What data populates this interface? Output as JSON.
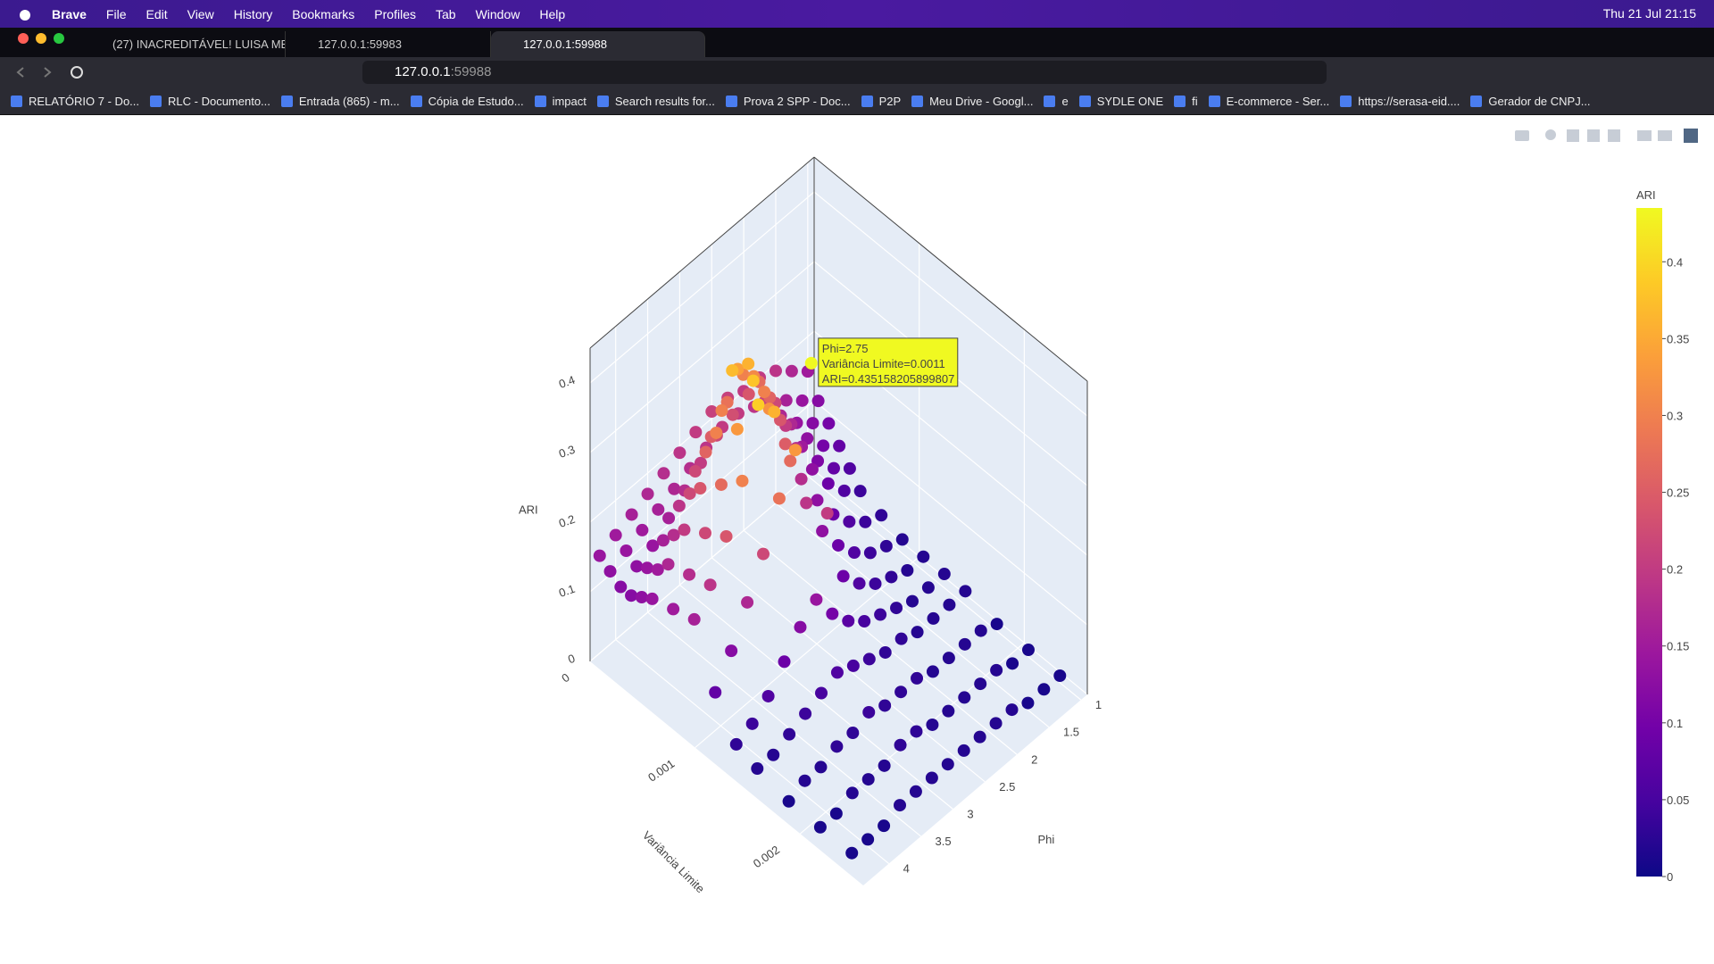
{
  "menu_bar": {
    "app": "Brave",
    "items": [
      "File",
      "Edit",
      "View",
      "History",
      "Bookmarks",
      "Profiles",
      "Tab",
      "Window",
      "Help"
    ],
    "clock": "Thu 21 Jul  21:15"
  },
  "tabs": [
    {
      "title": "(27) INACREDITÁVEL! LUISA MEL IN",
      "active": false
    },
    {
      "title": "127.0.0.1:59983",
      "active": false
    },
    {
      "title": "127.0.0.1:59988",
      "active": true
    }
  ],
  "address": {
    "host": "127.0.0.1",
    "port": ":59988"
  },
  "bookmarks": [
    "RELATÓRIO 7 - Do...",
    "RLC - Documento...",
    "Entrada (865) - m...",
    "Cópia de Estudo...",
    "impact",
    "Search results for...",
    "Prova 2 SPP - Doc...",
    "P2P",
    "Meu Drive - Googl...",
    "e",
    "SYDLE ONE",
    "fi",
    "E-commerce - Ser...",
    "https://serasa-eid....",
    "Gerador de CNPJ..."
  ],
  "chart_data": {
    "type": "scatter3d",
    "x_label": "Phi",
    "y_label": "Variância Limite",
    "z_label": "ARI",
    "colorbar_title": "ARI",
    "x": [
      1,
      1.25,
      1.5,
      1.75,
      2,
      2.25,
      2.5,
      2.75,
      3,
      3.25,
      3.5,
      3.75,
      4,
      4.25
    ],
    "y": [
      0,
      0.0001,
      0.0002,
      0.0003,
      0.0004,
      0.0005,
      0.0007,
      0.0009,
      0.0011,
      0.0013,
      0.0015,
      0.0018,
      0.0021,
      0.0024
    ],
    "z": [
      [
        0.15,
        0.17,
        0.19,
        0.2,
        0.2,
        0.21,
        0.21,
        0.2,
        0.19,
        0.18,
        0.17,
        0.16,
        0.15,
        0.14
      ],
      [
        0.12,
        0.14,
        0.16,
        0.18,
        0.19,
        0.2,
        0.2,
        0.19,
        0.18,
        0.17,
        0.16,
        0.15,
        0.14,
        0.13
      ],
      [
        0.1,
        0.12,
        0.14,
        0.17,
        0.21,
        0.24,
        0.23,
        0.22,
        0.2,
        0.18,
        0.16,
        0.14,
        0.13,
        0.12
      ],
      [
        0.08,
        0.1,
        0.13,
        0.17,
        0.22,
        0.27,
        0.3,
        0.28,
        0.25,
        0.22,
        0.19,
        0.16,
        0.14,
        0.12
      ],
      [
        0.06,
        0.08,
        0.11,
        0.15,
        0.2,
        0.26,
        0.31,
        0.34,
        0.3,
        0.26,
        0.22,
        0.18,
        0.15,
        0.13
      ],
      [
        0.04,
        0.06,
        0.09,
        0.13,
        0.18,
        0.24,
        0.3,
        0.36,
        0.37,
        0.3,
        0.24,
        0.2,
        0.17,
        0.14
      ],
      [
        0.03,
        0.04,
        0.06,
        0.09,
        0.13,
        0.18,
        0.25,
        0.32,
        0.38,
        0.33,
        0.27,
        0.22,
        0.18,
        0.15
      ],
      [
        0.02,
        0.03,
        0.04,
        0.06,
        0.09,
        0.13,
        0.19,
        0.27,
        0.36,
        0.39,
        0.3,
        0.24,
        0.19,
        0.16
      ],
      [
        0.02,
        0.02,
        0.03,
        0.04,
        0.06,
        0.09,
        0.2,
        0.435158205899807,
        0.33,
        0.28,
        0.22,
        0.17,
        0.12,
        0.08
      ],
      [
        0.02,
        0.02,
        0.02,
        0.03,
        0.04,
        0.05,
        0.07,
        0.1,
        0.14,
        0.12,
        0.09,
        0.06,
        0.04,
        0.03
      ],
      [
        0.02,
        0.02,
        0.02,
        0.02,
        0.03,
        0.03,
        0.04,
        0.05,
        0.06,
        0.05,
        0.04,
        0.03,
        0.02,
        0.02
      ],
      [
        0.01,
        0.02,
        0.02,
        0.02,
        0.02,
        0.03,
        0.03,
        0.03,
        0.04,
        0.03,
        0.03,
        0.02,
        0.02,
        0.01
      ],
      [
        0.01,
        0.01,
        0.02,
        0.02,
        0.02,
        0.02,
        0.02,
        0.03,
        0.03,
        0.02,
        0.02,
        0.02,
        0.01,
        0.01
      ],
      [
        0.01,
        0.01,
        0.01,
        0.02,
        0.02,
        0.02,
        0.02,
        0.02,
        0.02,
        0.02,
        0.02,
        0.01,
        0.01,
        0.01
      ]
    ],
    "xlim": [
      0.9,
      4.4
    ],
    "ylim": [
      0,
      0.0026
    ],
    "zlim": [
      0,
      0.45
    ],
    "xticks": [
      1,
      1.5,
      2,
      2.5,
      3,
      3.5,
      4
    ],
    "yticks": [
      0,
      0.001,
      0.002
    ],
    "zticks": [
      0,
      0.1,
      0.2,
      0.3,
      0.4
    ],
    "clim": [
      0,
      0.435
    ],
    "cticks": [
      0,
      0.05,
      0.1,
      0.15,
      0.2,
      0.25,
      0.3,
      0.35,
      0.4
    ],
    "colorscale": [
      "#0d0887",
      "#46039f",
      "#7201a8",
      "#9c179e",
      "#bd3786",
      "#d8576b",
      "#ed7953",
      "#fb9f3a",
      "#fdca26",
      "#f0f921"
    ],
    "hover": {
      "x": 2.75,
      "y": 0.0011,
      "z": 0.435158205899807,
      "lines": [
        "Phi=2.75",
        "Variância Limite=0.0011",
        "ARI=0.435158205899807"
      ]
    }
  }
}
